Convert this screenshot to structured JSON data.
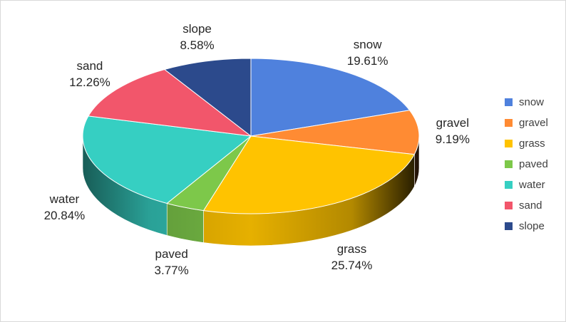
{
  "chart_data": {
    "type": "pie",
    "style": "3d",
    "title": "",
    "categories": [
      "snow",
      "gravel",
      "grass",
      "paved",
      "water",
      "sand",
      "slope"
    ],
    "values": [
      19.61,
      9.19,
      25.74,
      3.77,
      20.84,
      12.26,
      8.58
    ],
    "value_labels": [
      "19.61%",
      "9.19%",
      "25.74%",
      "3.77%",
      "20.84%",
      "12.26%",
      "8.58%"
    ],
    "colors": [
      "#4F81DD",
      "#FF8B33",
      "#FFC300",
      "#7DC84A",
      "#36CFC2",
      "#F2566B",
      "#2C4A8C"
    ],
    "legend_position": "right",
    "start_angle_deg": 0,
    "direction": "clockwise"
  }
}
